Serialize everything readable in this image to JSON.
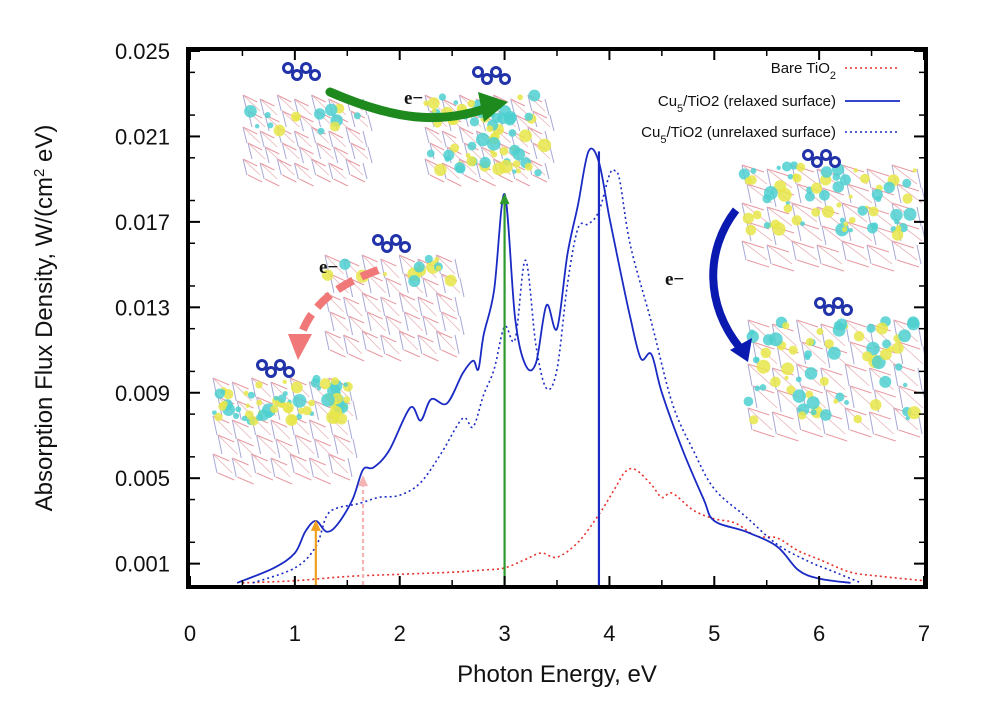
{
  "chart_data": {
    "type": "line",
    "title": "",
    "xlabel": "Photon Energy, eV",
    "ylabel_parts": [
      "Absorption Flux Density, W/(cm",
      "2",
      " eV)"
    ],
    "xlim": [
      0,
      7
    ],
    "ylim": [
      0,
      0.025
    ],
    "x_ticks": [
      0,
      1,
      2,
      3,
      4,
      5,
      6,
      7
    ],
    "y_ticks": [
      0.001,
      0.005,
      0.009,
      0.013,
      0.017,
      0.021,
      0.025
    ],
    "y_tick_labels": [
      "0.001",
      "0.005",
      "0.009",
      "0.013",
      "0.017",
      "0.021",
      "0.025"
    ],
    "grid": false,
    "legend_position": "top-right",
    "series": [
      {
        "name_parts": [
          "Bare TiO",
          "2",
          ""
        ],
        "color": "#e8322c",
        "style": "dotted",
        "x": [
          0.5,
          1.0,
          1.5,
          2.0,
          2.5,
          2.8,
          3.0,
          3.2,
          3.35,
          3.5,
          3.7,
          3.9,
          4.05,
          4.15,
          4.25,
          4.4,
          4.5,
          4.6,
          4.8,
          5.0,
          5.2,
          5.4,
          5.6,
          5.8,
          6.0,
          6.3,
          6.6,
          7.0
        ],
        "y": [
          0.0001,
          0.0002,
          0.0004,
          0.0005,
          0.0006,
          0.0007,
          0.0008,
          0.0012,
          0.0015,
          0.0013,
          0.002,
          0.0033,
          0.0045,
          0.0053,
          0.0054,
          0.0047,
          0.0041,
          0.0043,
          0.0035,
          0.0031,
          0.0029,
          0.0023,
          0.0022,
          0.0016,
          0.0012,
          0.0006,
          0.0004,
          0.0002
        ]
      },
      {
        "name_parts": [
          "Cu",
          "5",
          "/TiO2 (relaxed surface)"
        ],
        "color": "#1a2bc4",
        "style": "solid",
        "x": [
          0.45,
          0.8,
          1.0,
          1.1,
          1.2,
          1.3,
          1.4,
          1.55,
          1.65,
          1.75,
          1.9,
          2.1,
          2.2,
          2.3,
          2.45,
          2.6,
          2.7,
          2.75,
          2.8,
          2.9,
          3.0,
          3.1,
          3.2,
          3.3,
          3.4,
          3.5,
          3.6,
          3.7,
          3.8,
          3.9,
          4.0,
          4.1,
          4.2,
          4.3,
          4.4,
          4.5,
          4.7,
          4.9,
          5.0,
          5.3,
          5.6,
          5.8,
          6.0,
          6.3
        ],
        "y": [
          0.0001,
          0.0008,
          0.0015,
          0.0025,
          0.003,
          0.0025,
          0.0028,
          0.004,
          0.0054,
          0.0055,
          0.0063,
          0.0083,
          0.0077,
          0.0087,
          0.0085,
          0.0099,
          0.0105,
          0.0101,
          0.0117,
          0.0138,
          0.0183,
          0.0125,
          0.0103,
          0.0104,
          0.0131,
          0.012,
          0.0155,
          0.0178,
          0.0203,
          0.0198,
          0.0172,
          0.0148,
          0.0125,
          0.0106,
          0.0108,
          0.009,
          0.0063,
          0.004,
          0.003,
          0.0025,
          0.0018,
          0.0007,
          0.0003,
          0.0001
        ]
      },
      {
        "name_parts": [
          "Cu",
          "5",
          "/TiO2 (unrelaxed surface)"
        ],
        "color": "#1a2bc4",
        "style": "dotted",
        "x": [
          0.6,
          1.0,
          1.2,
          1.3,
          1.4,
          1.6,
          1.8,
          2.0,
          2.2,
          2.4,
          2.6,
          2.7,
          2.8,
          2.9,
          3.0,
          3.1,
          3.2,
          3.3,
          3.4,
          3.5,
          3.6,
          3.7,
          3.8,
          3.9,
          4.0,
          4.05,
          4.1,
          4.2,
          4.4,
          4.6,
          4.8,
          5.0,
          5.3,
          5.6,
          5.9,
          6.1,
          6.4
        ],
        "y": [
          0.0001,
          0.0008,
          0.0018,
          0.0032,
          0.0036,
          0.0038,
          0.0041,
          0.0042,
          0.0048,
          0.0062,
          0.0078,
          0.0074,
          0.0089,
          0.0101,
          0.0121,
          0.0115,
          0.0152,
          0.0112,
          0.0092,
          0.0101,
          0.0141,
          0.0167,
          0.0169,
          0.0175,
          0.0192,
          0.0194,
          0.0189,
          0.0159,
          0.0123,
          0.0085,
          0.0063,
          0.0045,
          0.0032,
          0.0019,
          0.0011,
          0.0007,
          0.0001
        ]
      }
    ],
    "vertical_markers": [
      {
        "x": 1.2,
        "y": 0.003,
        "color": "#f0a020",
        "style": "solid-arrow"
      },
      {
        "x": 1.65,
        "y": 0.0051,
        "color": "#f5b4b4",
        "style": "dashed-arrow"
      },
      {
        "x": 3.0,
        "y": 0.0183,
        "color": "#2e9a2e",
        "style": "solid-arrow"
      },
      {
        "x": 3.9,
        "y": 0.0203,
        "color": "#1a2bc4",
        "style": "solid-line"
      }
    ],
    "annotations": [
      "e−",
      "e−",
      "e−"
    ]
  }
}
